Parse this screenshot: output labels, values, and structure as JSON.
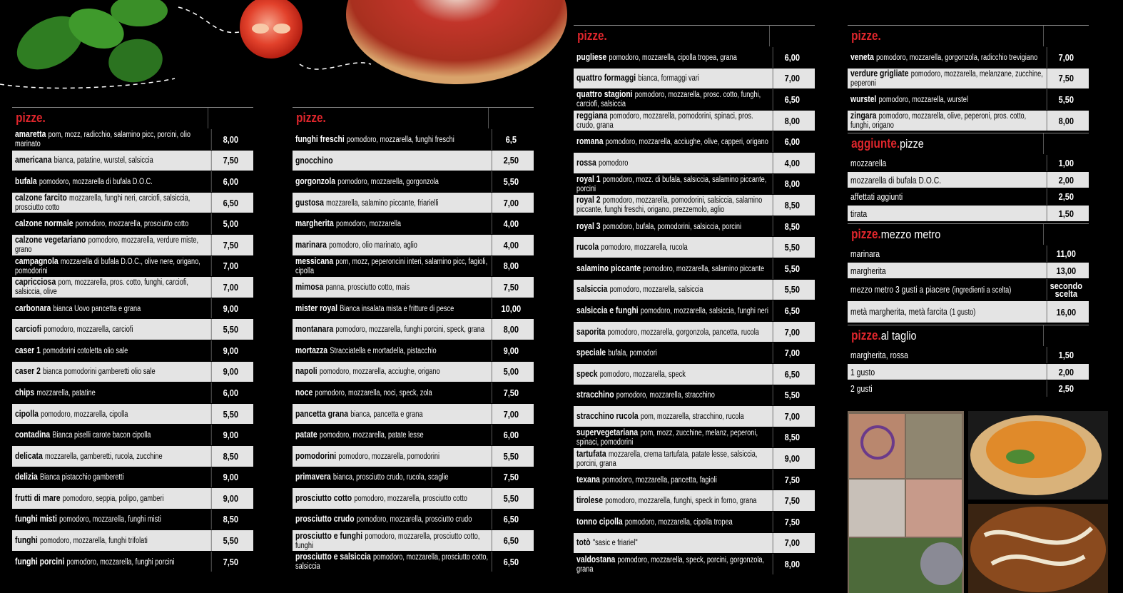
{
  "columns": [
    {
      "sections": [
        {
          "title": "pizze.",
          "items": [
            {
              "name": "amaretta",
              "description": "pom, mozz, radicchio, salamino picc, porcini, olio marinato",
              "price": "8,00"
            },
            {
              "name": "americana",
              "description": "bianca, patatine, wurstel, salsiccia",
              "price": "7,50"
            },
            {
              "name": "bufala",
              "description": "pomodoro, mozzarella di bufala D.O.C.",
              "price": "6,00"
            },
            {
              "name": "calzone farcito",
              "description": "mozzarella, funghi neri, carciofi, salsiccia, prosciutto cotto",
              "price": "6,50"
            },
            {
              "name": "calzone normale",
              "description": "pomodoro, mozzarella, prosciutto cotto",
              "price": "5,00"
            },
            {
              "name": "calzone vegetariano",
              "description": "pomodoro, mozzarella, verdure miste, grano",
              "price": "7,50"
            },
            {
              "name": "campagnola",
              "description": "mozzarella di bufala D.O.C., olive nere, origano, pomodorini",
              "price": "7,00"
            },
            {
              "name": "capricciosa",
              "description": "pom, mozzarella, pros. cotto, funghi, carciofi, salsiccia, olive",
              "price": "7,00"
            },
            {
              "name": "carbonara",
              "description": "bianca Uovo pancetta e grana",
              "price": "9,00"
            },
            {
              "name": "carciofi",
              "description": "pomodoro, mozzarella, carciofi",
              "price": "5,50"
            },
            {
              "name": "caser 1",
              "description": "pomodorini cotoletta olio sale",
              "price": "9,00"
            },
            {
              "name": "caser 2",
              "description": "bianca pomodorini gamberetti olio sale",
              "price": "9,00"
            },
            {
              "name": "chips",
              "description": "mozzarella, patatine",
              "price": "6,00"
            },
            {
              "name": "cipolla",
              "description": "pomodoro, mozzarella, cipolla",
              "price": "5,50"
            },
            {
              "name": "contadina",
              "description": "Bianca piselli carote bacon cipolla",
              "price": "9,00"
            },
            {
              "name": "delicata",
              "description": "mozzarella, gamberetti, rucola, zucchine",
              "price": "8,50"
            },
            {
              "name": "delizia",
              "description": "Bianca pistacchio gamberetti",
              "price": "9,00"
            },
            {
              "name": "frutti di mare",
              "description": "pomodoro, seppia, polipo, gamberi",
              "price": "9,00"
            },
            {
              "name": "funghi misti",
              "description": "pomodoro, mozzarella, funghi misti",
              "price": "8,50"
            },
            {
              "name": "funghi",
              "description": "pomodoro, mozzarella, funghi trifolati",
              "price": "5,50"
            },
            {
              "name": "funghi porcini",
              "description": "pomodoro, mozzarella, funghi porcini",
              "price": "7,50"
            }
          ]
        }
      ]
    },
    {
      "sections": [
        {
          "title": "pizze.",
          "items": [
            {
              "name": "funghi freschi",
              "description": "pomodoro, mozzarella, funghi freschi",
              "price": "6,5"
            },
            {
              "name": "gnocchino",
              "price": "2,50"
            },
            {
              "name": "gorgonzola",
              "description": "pomodoro, mozzarella, gorgonzola",
              "price": "5,50"
            },
            {
              "name": "gustosa",
              "description": "mozzarella, salamino piccante, friarielli",
              "price": "7,00"
            },
            {
              "name": "margherita",
              "description": "pomodoro, mozzarella",
              "price": "4,00"
            },
            {
              "name": "marinara",
              "description": "pomodoro, olio marinato, aglio",
              "price": "4,00"
            },
            {
              "name": "messicana",
              "description": "pom, mozz, peperoncini interi, salamino picc, fagioli, cipolla",
              "price": "8,00"
            },
            {
              "name": "mimosa",
              "description": "panna, prosciutto cotto, mais",
              "price": "7,50"
            },
            {
              "name": "mister royal",
              "description": "Bianca insalata mista e fritture di pesce",
              "price": "10,00"
            },
            {
              "name": "montanara",
              "description": "pomodoro, mozzarella, funghi porcini, speck, grana",
              "price": "8,00"
            },
            {
              "name": "mortazza",
              "description": "Stracciatella e mortadella, pistacchio",
              "price": "9,00"
            },
            {
              "name": "napoli",
              "description": "pomodoro, mozzarella, acciughe, origano",
              "price": "5,00"
            },
            {
              "name": "noce",
              "description": "pomodoro, mozzarella, noci, speck, zola",
              "price": "7,50"
            },
            {
              "name": "pancetta grana",
              "description": "bianca, pancetta e grana",
              "price": "7,00"
            },
            {
              "name": "patate",
              "description": "pomodoro, mozzarella, patate lesse",
              "price": "6,00"
            },
            {
              "name": "pomodorini",
              "description": "pomodoro, mozzarella, pomodorini",
              "price": "5,50"
            },
            {
              "name": "primavera",
              "description": "bianca, prosciutto crudo, rucola, scaglie",
              "price": "7,50"
            },
            {
              "name": "prosciutto cotto",
              "description": "pomodoro, mozzarella, prosciutto cotto",
              "price": "5,50"
            },
            {
              "name": "prosciutto crudo",
              "description": "pomodoro, mozzarella, prosciutto crudo",
              "price": "6,50"
            },
            {
              "name": "prosciutto e funghi",
              "description": "pomodoro, mozzarella, prosciutto cotto, funghi",
              "price": "6,50"
            },
            {
              "name": "prosciutto e salsiccia",
              "description": "pomodoro, mozzarella, prosciutto cotto, salsiccia",
              "price": "6,50"
            }
          ]
        }
      ]
    },
    {
      "sections": [
        {
          "title": "pizze.",
          "items": [
            {
              "name": "pugliese",
              "description": "pomodoro, mozzarella, cipolla tropea, grana",
              "price": "6,00"
            },
            {
              "name": "quattro formaggi",
              "description": "bianca, formaggi vari",
              "price": "7,00"
            },
            {
              "name": "quattro stagioni",
              "description": "pomodoro, mozzarella, prosc. cotto, funghi, carciofi, salsiccia",
              "price": "6,50"
            },
            {
              "name": "reggiana",
              "description": "pomodoro, mozzarella, pomodorini, spinaci, pros. crudo, grana",
              "price": "8,00"
            },
            {
              "name": "romana",
              "description": "pomodoro, mozzarella, acciughe, olive, capperi, origano",
              "price": "6,00"
            },
            {
              "name": "rossa",
              "description": "pomodoro",
              "price": "4,00"
            },
            {
              "name": "royal 1",
              "description": "pomodoro, mozz. di bufala, salsiccia, salamino piccante, porcini",
              "price": "8,00"
            },
            {
              "name": "royal 2",
              "description": "pomodoro, mozzarella, pomodorini, salsiccia, salamino piccante, funghi freschi, origano, prezzemolo, aglio",
              "price": "8,50"
            },
            {
              "name": "royal 3",
              "description": "pomodoro, bufala, pomodorini, salsiccia, porcini",
              "price": "8,50"
            },
            {
              "name": "rucola",
              "description": "pomodoro, mozzarella, rucola",
              "price": "5,50"
            },
            {
              "name": "salamino piccante",
              "description": "pomodoro, mozzarella, salamino piccante",
              "price": "5,50"
            },
            {
              "name": "salsiccia",
              "description": "pomodoro, mozzarella, salsiccia",
              "price": "5,50"
            },
            {
              "name": "salsiccia e funghi",
              "description": "pomodoro, mozzarella, salsiccia, funghi neri",
              "price": "6,50"
            },
            {
              "name": "saporita",
              "description": "pomodoro, mozzarella, gorgonzola, pancetta, rucola",
              "price": "7,00"
            },
            {
              "name": "speciale",
              "description": "bufala, pomodori",
              "price": "7,00"
            },
            {
              "name": "speck",
              "description": "pomodoro, mozzarella, speck",
              "price": "6,50"
            },
            {
              "name": "stracchino",
              "description": "pomodoro, mozzarella, stracchino",
              "price": "5,50"
            },
            {
              "name": "stracchino rucola",
              "description": "pom, mozzarella, stracchino, rucola",
              "price": "7,00"
            },
            {
              "name": "supervegetariana",
              "description": "pom, mozz, zucchine, melanz, peperoni, spinaci, pomodorini",
              "price": "8,50"
            },
            {
              "name": "tartufata",
              "description": "mozzarella, crema tartufata, patate lesse, salsiccia, porcini, grana",
              "price": "9,00"
            },
            {
              "name": "texana",
              "description": "pomodoro, mozzarella, pancetta, fagioli",
              "price": "7,50"
            },
            {
              "name": "tirolese",
              "description": "pomodoro, mozzarella, funghi, speck in forno, grana",
              "price": "7,50"
            },
            {
              "name": "tonno cipolla",
              "description": "pomodoro, mozzarella, cipolla tropea",
              "price": "7,50"
            },
            {
              "name": "totò",
              "description": "\"sasic e friariel\"",
              "price": "7,00"
            },
            {
              "name": "valdostana",
              "description": "pomodoro, mozzarella, speck, porcini, gorgonzola, grana",
              "price": "8,00"
            }
          ]
        }
      ]
    },
    {
      "sections": [
        {
          "title": "pizze.",
          "items": [
            {
              "name": "veneta",
              "description": "pomodoro, mozzarella, gorgonzola, radicchio trevigiano",
              "price": "7,00"
            },
            {
              "name": "verdure grigliate",
              "description": "pomodoro, mozzarella, melanzane, zucchine, peperoni",
              "price": "7,50"
            },
            {
              "name": "wurstel",
              "description": "pomodoro, mozzarella, wurstel",
              "price": "5,50"
            },
            {
              "name": "zingara",
              "description": "pomodoro, mozzarella, olive, peperoni, pros. cotto, funghi, origano",
              "price": "8,00"
            }
          ]
        },
        {
          "title": "aggiunte.",
          "subtitle": "pizze",
          "items": [
            {
              "label": "mozzarella",
              "price": "1,00"
            },
            {
              "label": "mozzarella di bufala D.O.C.",
              "price": "2,00"
            },
            {
              "label": "affettati aggiunti",
              "price": "2,50"
            },
            {
              "label": "tirata",
              "price": "1,50"
            }
          ]
        },
        {
          "title": "pizze.",
          "subtitle": "mezzo metro",
          "items": [
            {
              "label": "marinara",
              "price": "11,00"
            },
            {
              "label": "margherita",
              "price": "13,00"
            },
            {
              "label": "mezzo metro 3 gusti a piacere",
              "note": "(ingredienti a scelta)",
              "price": "secondo scelta"
            },
            {
              "label": "metà margherita, metà farcita",
              "note": "(1 gusto)",
              "price": "16,00"
            }
          ]
        },
        {
          "title": "pizze.",
          "subtitle": "al taglio",
          "items": [
            {
              "label": "margherita, rossa",
              "price": "1,50"
            },
            {
              "label": "1 gusto",
              "price": "2,00"
            },
            {
              "label": "2 gusti",
              "price": "2,50"
            }
          ]
        }
      ]
    }
  ]
}
